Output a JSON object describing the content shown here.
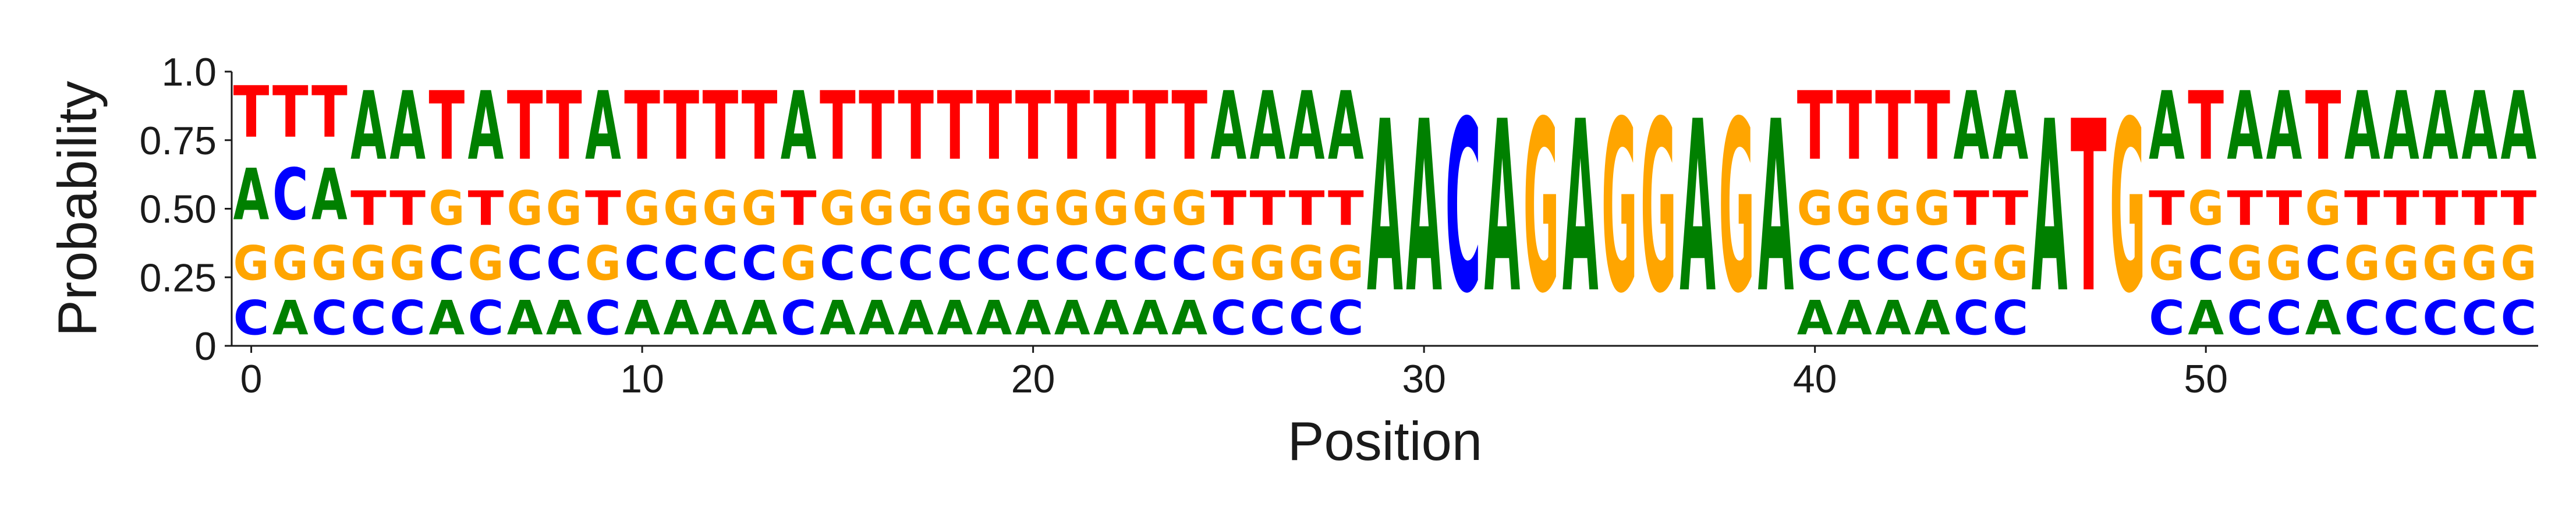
{
  "colors": {
    "A": "#008000",
    "C": "#0000ff",
    "G": "#ffa500",
    "T": "#ff0000",
    "axis": "#1a1a1a"
  },
  "chart_data": {
    "type": "sequence-logo",
    "xlabel": "Position",
    "ylabel": "Probability",
    "ylim": [
      0,
      1
    ],
    "xlim": [
      -0.5,
      58.5
    ],
    "x_ticks": [
      0,
      10,
      20,
      30,
      40,
      50
    ],
    "y_ticks": [
      0,
      0.25,
      0.5,
      0.75,
      1.0
    ],
    "y_tick_labels": [
      "0",
      "0.25",
      "0.50",
      "0.75",
      "1.0"
    ],
    "alphabet": [
      "A",
      "C",
      "G",
      "T"
    ],
    "positions": [
      {
        "x": 0,
        "A": 0.3,
        "C": 0.2,
        "G": 0.2,
        "T": 0.3
      },
      {
        "x": 1,
        "A": 0.2,
        "C": 0.3,
        "G": 0.2,
        "T": 0.3
      },
      {
        "x": 2,
        "A": 0.3,
        "C": 0.2,
        "G": 0.2,
        "T": 0.3
      },
      {
        "x": 3,
        "A": 0.4,
        "C": 0.2,
        "G": 0.2,
        "T": 0.2
      },
      {
        "x": 4,
        "A": 0.4,
        "C": 0.2,
        "G": 0.2,
        "T": 0.2
      },
      {
        "x": 5,
        "A": 0.2,
        "C": 0.2,
        "G": 0.2,
        "T": 0.4
      },
      {
        "x": 6,
        "A": 0.4,
        "C": 0.2,
        "G": 0.2,
        "T": 0.2
      },
      {
        "x": 7,
        "A": 0.2,
        "C": 0.2,
        "G": 0.2,
        "T": 0.4
      },
      {
        "x": 8,
        "A": 0.2,
        "C": 0.2,
        "G": 0.2,
        "T": 0.4
      },
      {
        "x": 9,
        "A": 0.4,
        "C": 0.2,
        "G": 0.2,
        "T": 0.2
      },
      {
        "x": 10,
        "A": 0.2,
        "C": 0.2,
        "G": 0.2,
        "T": 0.4
      },
      {
        "x": 11,
        "A": 0.2,
        "C": 0.2,
        "G": 0.2,
        "T": 0.4
      },
      {
        "x": 12,
        "A": 0.2,
        "C": 0.2,
        "G": 0.2,
        "T": 0.4
      },
      {
        "x": 13,
        "A": 0.2,
        "C": 0.2,
        "G": 0.2,
        "T": 0.4
      },
      {
        "x": 14,
        "A": 0.4,
        "C": 0.2,
        "G": 0.2,
        "T": 0.2
      },
      {
        "x": 15,
        "A": 0.2,
        "C": 0.2,
        "G": 0.2,
        "T": 0.4
      },
      {
        "x": 16,
        "A": 0.2,
        "C": 0.2,
        "G": 0.2,
        "T": 0.4
      },
      {
        "x": 17,
        "A": 0.2,
        "C": 0.2,
        "G": 0.2,
        "T": 0.4
      },
      {
        "x": 18,
        "A": 0.2,
        "C": 0.2,
        "G": 0.2,
        "T": 0.4
      },
      {
        "x": 19,
        "A": 0.2,
        "C": 0.2,
        "G": 0.2,
        "T": 0.4
      },
      {
        "x": 20,
        "A": 0.2,
        "C": 0.2,
        "G": 0.2,
        "T": 0.4
      },
      {
        "x": 21,
        "A": 0.2,
        "C": 0.2,
        "G": 0.2,
        "T": 0.4
      },
      {
        "x": 22,
        "A": 0.2,
        "C": 0.2,
        "G": 0.2,
        "T": 0.4
      },
      {
        "x": 23,
        "A": 0.2,
        "C": 0.2,
        "G": 0.2,
        "T": 0.4
      },
      {
        "x": 24,
        "A": 0.2,
        "C": 0.2,
        "G": 0.2,
        "T": 0.4
      },
      {
        "x": 25,
        "A": 0.4,
        "C": 0.2,
        "G": 0.2,
        "T": 0.2
      },
      {
        "x": 26,
        "A": 0.4,
        "C": 0.2,
        "G": 0.2,
        "T": 0.2
      },
      {
        "x": 27,
        "A": 0.4,
        "C": 0.2,
        "G": 0.2,
        "T": 0.2
      },
      {
        "x": 28,
        "A": 0.4,
        "C": 0.2,
        "G": 0.2,
        "T": 0.2
      },
      {
        "x": 29,
        "A": 1.0,
        "C": 0.0,
        "G": 0.0,
        "T": 0.0
      },
      {
        "x": 30,
        "A": 1.0,
        "C": 0.0,
        "G": 0.0,
        "T": 0.0
      },
      {
        "x": 31,
        "A": 0.0,
        "C": 1.0,
        "G": 0.0,
        "T": 0.0
      },
      {
        "x": 32,
        "A": 1.0,
        "C": 0.0,
        "G": 0.0,
        "T": 0.0
      },
      {
        "x": 33,
        "A": 0.0,
        "C": 0.0,
        "G": 1.0,
        "T": 0.0
      },
      {
        "x": 34,
        "A": 1.0,
        "C": 0.0,
        "G": 0.0,
        "T": 0.0
      },
      {
        "x": 35,
        "A": 0.0,
        "C": 0.0,
        "G": 1.0,
        "T": 0.0
      },
      {
        "x": 36,
        "A": 0.0,
        "C": 0.0,
        "G": 1.0,
        "T": 0.0
      },
      {
        "x": 37,
        "A": 1.0,
        "C": 0.0,
        "G": 0.0,
        "T": 0.0
      },
      {
        "x": 38,
        "A": 0.0,
        "C": 0.0,
        "G": 1.0,
        "T": 0.0
      },
      {
        "x": 39,
        "A": 1.0,
        "C": 0.0,
        "G": 0.0,
        "T": 0.0
      },
      {
        "x": 40,
        "A": 0.2,
        "C": 0.2,
        "G": 0.2,
        "T": 0.4
      },
      {
        "x": 41,
        "A": 0.2,
        "C": 0.2,
        "G": 0.2,
        "T": 0.4
      },
      {
        "x": 42,
        "A": 0.2,
        "C": 0.2,
        "G": 0.2,
        "T": 0.4
      },
      {
        "x": 43,
        "A": 0.2,
        "C": 0.2,
        "G": 0.2,
        "T": 0.4
      },
      {
        "x": 44,
        "A": 0.4,
        "C": 0.2,
        "G": 0.2,
        "T": 0.2
      },
      {
        "x": 45,
        "A": 0.4,
        "C": 0.2,
        "G": 0.2,
        "T": 0.2
      },
      {
        "x": 46,
        "A": 1.0,
        "C": 0.0,
        "G": 0.0,
        "T": 0.0
      },
      {
        "x": 47,
        "A": 0.0,
        "C": 0.0,
        "G": 0.0,
        "T": 1.0
      },
      {
        "x": 48,
        "A": 0.0,
        "C": 0.0,
        "G": 1.0,
        "T": 0.0
      },
      {
        "x": 49,
        "A": 0.4,
        "C": 0.2,
        "G": 0.2,
        "T": 0.2
      },
      {
        "x": 50,
        "A": 0.2,
        "C": 0.2,
        "G": 0.2,
        "T": 0.4
      },
      {
        "x": 51,
        "A": 0.4,
        "C": 0.2,
        "G": 0.2,
        "T": 0.2
      },
      {
        "x": 52,
        "A": 0.4,
        "C": 0.2,
        "G": 0.2,
        "T": 0.2
      },
      {
        "x": 53,
        "A": 0.2,
        "C": 0.2,
        "G": 0.2,
        "T": 0.4
      },
      {
        "x": 54,
        "A": 0.4,
        "C": 0.2,
        "G": 0.2,
        "T": 0.2
      },
      {
        "x": 55,
        "A": 0.4,
        "C": 0.2,
        "G": 0.2,
        "T": 0.2
      },
      {
        "x": 56,
        "A": 0.4,
        "C": 0.2,
        "G": 0.2,
        "T": 0.2
      },
      {
        "x": 57,
        "A": 0.4,
        "C": 0.2,
        "G": 0.2,
        "T": 0.2
      },
      {
        "x": 58,
        "A": 0.4,
        "C": 0.2,
        "G": 0.2,
        "T": 0.2
      }
    ]
  }
}
